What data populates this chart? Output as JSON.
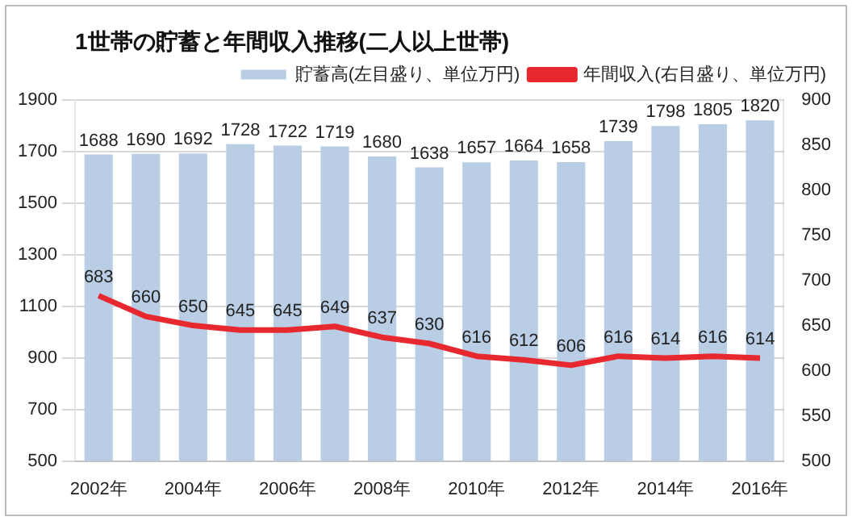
{
  "chart_data": {
    "type": "bar",
    "title": "1世帯の貯蓄と年間収入推移(二人以上世帯)",
    "categories": [
      "2002年",
      null,
      "2004年",
      null,
      "2006年",
      null,
      "2008年",
      null,
      "2010年",
      null,
      "2012年",
      null,
      "2014年",
      null,
      "2016年"
    ],
    "series": [
      {
        "name": "貯蓄高(左目盛り、単位万円)",
        "color": "#b9cde5",
        "values": [
          1688,
          1690,
          1692,
          1728,
          1722,
          1719,
          1680,
          1638,
          1657,
          1664,
          1658,
          1739,
          1798,
          1805,
          1820
        ]
      },
      {
        "name": "年間収入(右目盛り、単位万円)",
        "type": "line",
        "axis": "y2",
        "color": "#e8282f",
        "values": [
          683,
          660,
          650,
          645,
          645,
          649,
          637,
          630,
          616,
          612,
          606,
          616,
          614,
          616,
          614
        ]
      }
    ],
    "ylim": [
      500,
      1900
    ],
    "yticks": [
      500,
      700,
      900,
      1100,
      1300,
      1500,
      1700,
      1900
    ],
    "y2lim": [
      500,
      900
    ],
    "y2ticks": [
      500,
      550,
      600,
      650,
      700,
      750,
      800,
      850,
      900
    ],
    "grid": "y",
    "legend": "top right",
    "data_labels": true
  }
}
